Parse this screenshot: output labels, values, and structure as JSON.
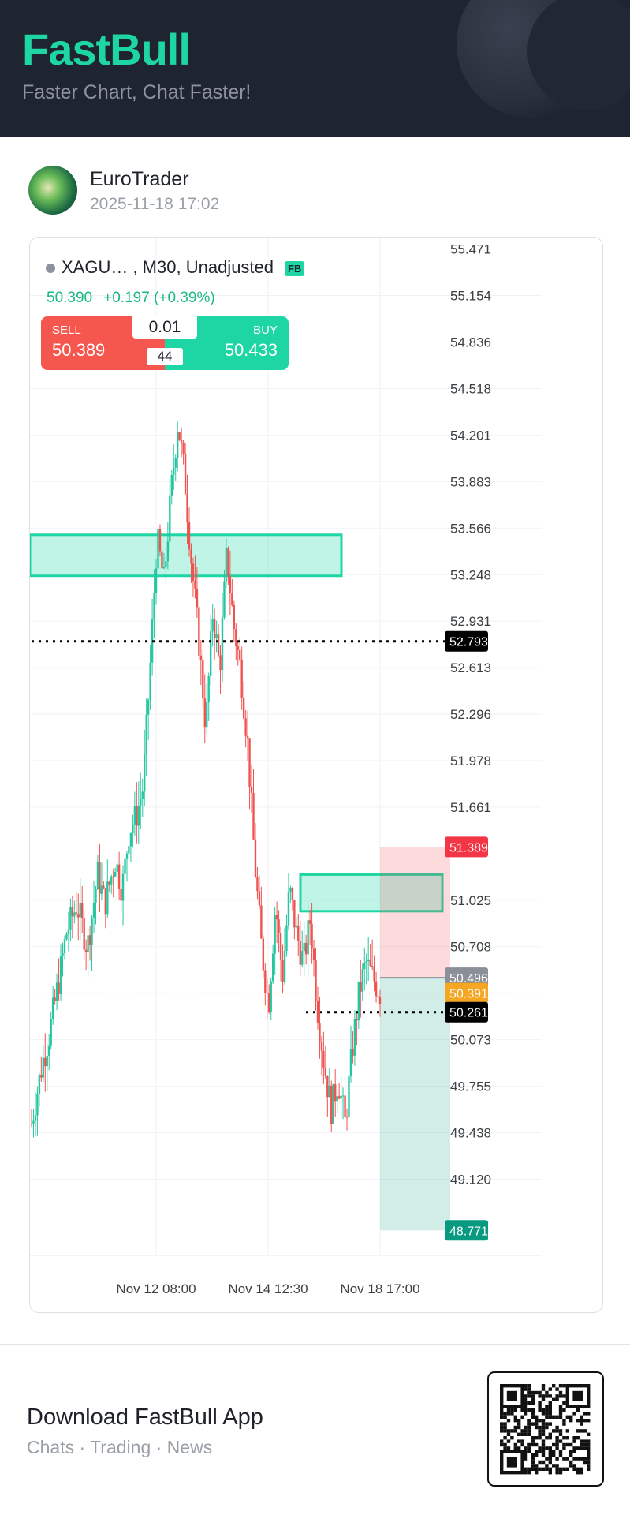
{
  "brand": {
    "name": "FastBull",
    "tagline": "Faster Chart, Chat Faster!",
    "accent": "#1ed6a4",
    "header_bg": "#1f2431"
  },
  "author": {
    "name": "EuroTrader",
    "timestamp": "2025-11-18 17:02"
  },
  "chart": {
    "symbol_line": "XAGU…   , M30, Unadjusted",
    "badge": "FB",
    "last": "50.390",
    "change": "+0.197 (+0.39%)",
    "trade": {
      "sell_label": "SELL",
      "sell_price": "50.389",
      "buy_label": "BUY",
      "buy_price": "50.433",
      "lot": "0.01",
      "spread": "44"
    }
  },
  "chart_data": {
    "type": "candlestick",
    "symbol": "XAGU…",
    "timeframe": "M30",
    "adjustment": "Unadjusted",
    "y_ticks": [
      "55.471",
      "55.154",
      "54.836",
      "54.518",
      "54.201",
      "53.883",
      "53.566",
      "53.248",
      "52.931",
      "52.613",
      "52.296",
      "51.978",
      "51.661",
      "51.025",
      "50.708",
      "50.073",
      "49.755",
      "49.438",
      "49.120"
    ],
    "ylim": [
      48.6,
      55.55
    ],
    "x_ticks": [
      "Nov 12 08:00",
      "Nov 14 12:30",
      "Nov 18 17:00"
    ],
    "price_tags": [
      {
        "value": "52.793",
        "color": "#000000"
      },
      {
        "value": "51.389",
        "color": "#f23645"
      },
      {
        "value": "50.496",
        "color": "#8a8f98"
      },
      {
        "value": "50.391",
        "color": "#f5a623"
      },
      {
        "value": "50.261",
        "color": "#000000"
      },
      {
        "value": "48.771",
        "color": "#089981"
      }
    ],
    "levels": [
      {
        "price": 52.793,
        "style": "dotted",
        "color": "#000000"
      },
      {
        "price": 50.261,
        "style": "dotted",
        "color": "#000000"
      },
      {
        "price": 50.391,
        "style": "dotted",
        "color": "#f5a623"
      }
    ],
    "zones": [
      {
        "kind": "supply",
        "top": 53.52,
        "bottom": 53.24,
        "color": "#1ed6a4"
      },
      {
        "kind": "supply",
        "top": 51.2,
        "bottom": 50.95,
        "color": "#1ed6a4"
      }
    ],
    "position": {
      "side": "short",
      "entry": 50.496,
      "stop": 51.389,
      "target": 48.771
    },
    "price_path": [
      {
        "t": 0,
        "p": 49.5
      },
      {
        "t": 0.03,
        "p": 49.9
      },
      {
        "t": 0.05,
        "p": 50.1
      },
      {
        "t": 0.08,
        "p": 50.5
      },
      {
        "t": 0.1,
        "p": 50.8
      },
      {
        "t": 0.13,
        "p": 51.0
      },
      {
        "t": 0.16,
        "p": 50.7
      },
      {
        "t": 0.19,
        "p": 51.2
      },
      {
        "t": 0.21,
        "p": 51.0
      },
      {
        "t": 0.24,
        "p": 51.3
      },
      {
        "t": 0.26,
        "p": 51.1
      },
      {
        "t": 0.28,
        "p": 51.5
      },
      {
        "t": 0.3,
        "p": 51.6
      },
      {
        "t": 0.32,
        "p": 51.8
      },
      {
        "t": 0.34,
        "p": 52.6
      },
      {
        "t": 0.36,
        "p": 53.5
      },
      {
        "t": 0.38,
        "p": 53.2
      },
      {
        "t": 0.4,
        "p": 53.8
      },
      {
        "t": 0.42,
        "p": 54.3
      },
      {
        "t": 0.44,
        "p": 53.9
      },
      {
        "t": 0.46,
        "p": 53.3
      },
      {
        "t": 0.48,
        "p": 52.8
      },
      {
        "t": 0.5,
        "p": 52.2
      },
      {
        "t": 0.52,
        "p": 53.0
      },
      {
        "t": 0.54,
        "p": 52.6
      },
      {
        "t": 0.56,
        "p": 53.4
      },
      {
        "t": 0.58,
        "p": 52.9
      },
      {
        "t": 0.6,
        "p": 52.6
      },
      {
        "t": 0.62,
        "p": 52.1
      },
      {
        "t": 0.64,
        "p": 51.3
      },
      {
        "t": 0.66,
        "p": 50.7
      },
      {
        "t": 0.68,
        "p": 50.3
      },
      {
        "t": 0.7,
        "p": 51.0
      },
      {
        "t": 0.72,
        "p": 50.5
      },
      {
        "t": 0.74,
        "p": 51.1
      },
      {
        "t": 0.76,
        "p": 50.8
      },
      {
        "t": 0.78,
        "p": 50.6
      },
      {
        "t": 0.8,
        "p": 50.9
      },
      {
        "t": 0.82,
        "p": 50.3
      },
      {
        "t": 0.84,
        "p": 49.9
      },
      {
        "t": 0.86,
        "p": 49.6
      },
      {
        "t": 0.88,
        "p": 49.8
      },
      {
        "t": 0.9,
        "p": 49.5
      },
      {
        "t": 0.92,
        "p": 50.0
      },
      {
        "t": 0.94,
        "p": 50.4
      },
      {
        "t": 0.96,
        "p": 50.6
      },
      {
        "t": 1.0,
        "p": 50.39
      }
    ],
    "grid": true
  },
  "footer": {
    "title": "Download FastBull App",
    "subtitle": "Chats · Trading · News"
  }
}
